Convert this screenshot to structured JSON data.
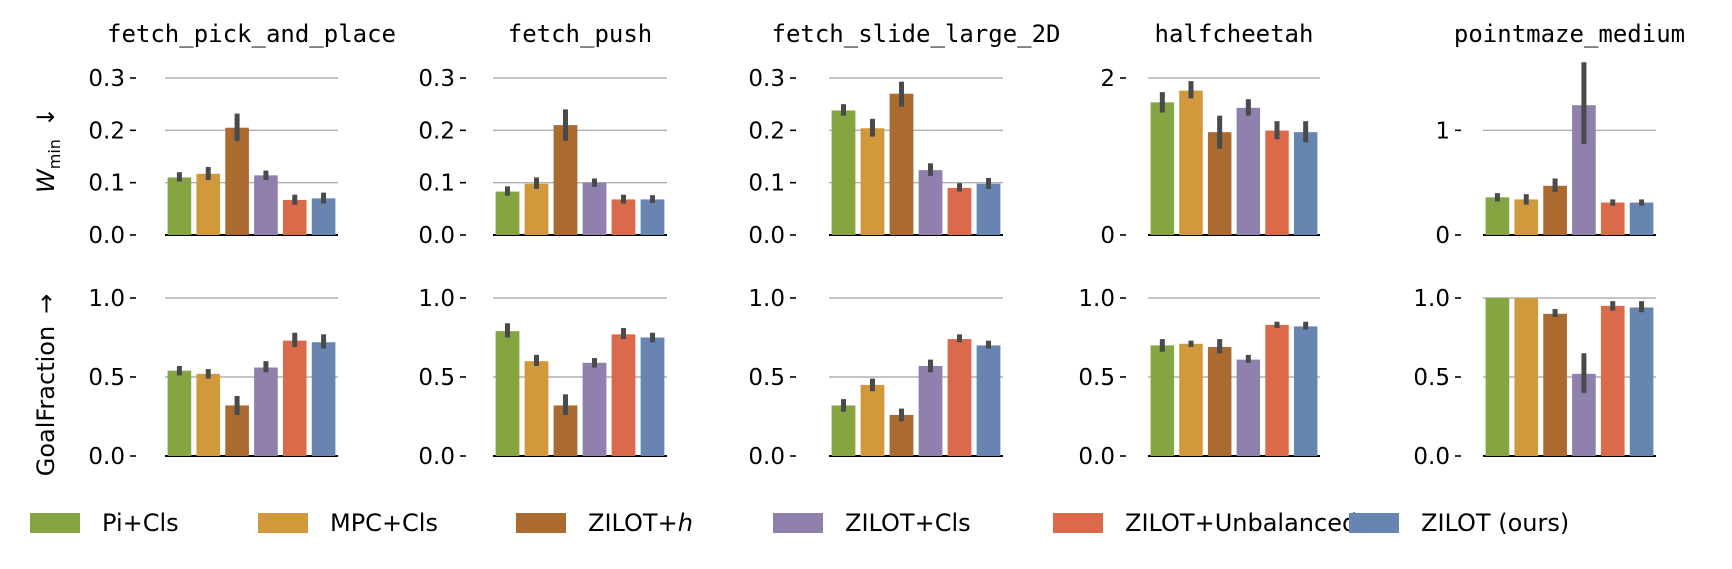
{
  "colors": {
    "Pi+Cls": "#84a541",
    "MPC+Cls": "#d1993b",
    "ZILOT+h": "#ab6a2f",
    "ZILOT+Cls": "#8f80ae",
    "ZILOT+Unbalanced": "#db6a4b",
    "ZILOT (ours)": "#6885b2",
    "errorbar": "#4a4a4a",
    "grid": "#b0b0b0"
  },
  "legend": {
    "items": [
      {
        "key": "Pi+Cls",
        "text": "Pi+Cls",
        "italic": ""
      },
      {
        "key": "MPC+Cls",
        "text": "MPC+Cls",
        "italic": ""
      },
      {
        "key": "ZILOT+h",
        "text": "ZILOT+",
        "italic": "h"
      },
      {
        "key": "ZILOT+Cls",
        "text": "ZILOT+Cls",
        "italic": ""
      },
      {
        "key": "ZILOT+Unbalanced",
        "text": "ZILOT+Unbalanced",
        "italic": ""
      },
      {
        "key": "ZILOT (ours)",
        "text": "ZILOT (ours)",
        "italic": ""
      }
    ]
  },
  "row_labels": {
    "row1": {
      "main": "W",
      "sub": "min",
      "arrow": "↓"
    },
    "row2": {
      "main": "GoalFraction",
      "arrow": "→"
    }
  },
  "chart_data": [
    {
      "type": "bar",
      "title": "fetch_pick_and_place",
      "ylabel": "W_min ↓",
      "categories": [
        "Pi+Cls",
        "MPC+Cls",
        "ZILOT+h",
        "ZILOT+Cls",
        "ZILOT+Unbalanced",
        "ZILOT (ours)"
      ],
      "values": [
        0.11,
        0.117,
        0.205,
        0.114,
        0.067,
        0.07
      ],
      "error_low": [
        0.102,
        0.105,
        0.18,
        0.105,
        0.058,
        0.06
      ],
      "error_high": [
        0.12,
        0.13,
        0.232,
        0.123,
        0.077,
        0.081
      ],
      "ylim": [
        0,
        0.3
      ],
      "yticks": [
        0.0,
        0.1,
        0.2,
        0.3
      ],
      "ytick_labels": [
        "0.0",
        "0.1",
        "0.2",
        "0.3"
      ]
    },
    {
      "type": "bar",
      "title": "fetch_push",
      "ylabel": "W_min ↓",
      "categories": [
        "Pi+Cls",
        "MPC+Cls",
        "ZILOT+h",
        "ZILOT+Cls",
        "ZILOT+Unbalanced",
        "ZILOT (ours)"
      ],
      "values": [
        0.083,
        0.098,
        0.21,
        0.1,
        0.068,
        0.068
      ],
      "error_low": [
        0.075,
        0.088,
        0.18,
        0.092,
        0.06,
        0.061
      ],
      "error_high": [
        0.093,
        0.11,
        0.24,
        0.108,
        0.077,
        0.076
      ],
      "ylim": [
        0,
        0.3
      ],
      "yticks": [
        0.0,
        0.1,
        0.2,
        0.3
      ],
      "ytick_labels": [
        "0.0",
        "0.1",
        "0.2",
        "0.3"
      ]
    },
    {
      "type": "bar",
      "title": "fetch_slide_large_2D",
      "ylabel": "W_min ↓",
      "categories": [
        "Pi+Cls",
        "MPC+Cls",
        "ZILOT+h",
        "ZILOT+Cls",
        "ZILOT+Unbalanced",
        "ZILOT (ours)"
      ],
      "values": [
        0.238,
        0.204,
        0.27,
        0.124,
        0.09,
        0.098
      ],
      "error_low": [
        0.228,
        0.188,
        0.245,
        0.113,
        0.083,
        0.088
      ],
      "error_high": [
        0.25,
        0.222,
        0.293,
        0.137,
        0.099,
        0.109
      ],
      "ylim": [
        0,
        0.3
      ],
      "yticks": [
        0.0,
        0.1,
        0.2,
        0.3
      ],
      "ytick_labels": [
        "0.0",
        "0.1",
        "0.2",
        "0.3"
      ]
    },
    {
      "type": "bar",
      "title": "halfcheetah",
      "ylabel": "W_min ↓",
      "categories": [
        "Pi+Cls",
        "MPC+Cls",
        "ZILOT+h",
        "ZILOT+Cls",
        "ZILOT+Unbalanced",
        "ZILOT (ours)"
      ],
      "values": [
        1.69,
        1.84,
        1.31,
        1.62,
        1.33,
        1.31
      ],
      "error_low": [
        1.56,
        1.74,
        1.1,
        1.52,
        1.22,
        1.18
      ],
      "error_high": [
        1.82,
        1.96,
        1.52,
        1.73,
        1.45,
        1.45
      ],
      "ylim": [
        0,
        2.0
      ],
      "yticks": [
        0,
        2
      ],
      "ytick_labels": [
        "0",
        "2"
      ]
    },
    {
      "type": "bar",
      "title": "pointmaze_medium",
      "ylabel": "W_min ↓",
      "categories": [
        "Pi+Cls",
        "MPC+Cls",
        "ZILOT+h",
        "ZILOT+Cls",
        "ZILOT+Unbalanced",
        "ZILOT (ours)"
      ],
      "values": [
        0.36,
        0.34,
        0.47,
        1.24,
        0.31,
        0.31
      ],
      "error_low": [
        0.32,
        0.29,
        0.41,
        0.87,
        0.28,
        0.28
      ],
      "error_high": [
        0.4,
        0.39,
        0.54,
        1.65,
        0.34,
        0.34
      ],
      "ylim": [
        0,
        1.5
      ],
      "yticks": [
        0,
        1
      ],
      "ytick_labels": [
        "0",
        "1"
      ]
    },
    {
      "type": "bar",
      "title": "",
      "ylabel": "GoalFraction →",
      "categories": [
        "Pi+Cls",
        "MPC+Cls",
        "ZILOT+h",
        "ZILOT+Cls",
        "ZILOT+Unbalanced",
        "ZILOT (ours)"
      ],
      "values": [
        0.54,
        0.52,
        0.32,
        0.56,
        0.73,
        0.72
      ],
      "error_low": [
        0.51,
        0.49,
        0.26,
        0.53,
        0.69,
        0.68
      ],
      "error_high": [
        0.57,
        0.55,
        0.38,
        0.6,
        0.78,
        0.77
      ],
      "ylim": [
        0,
        1.0
      ],
      "yticks": [
        0.0,
        0.5,
        1.0
      ],
      "ytick_labels": [
        "0.0",
        "0.5",
        "1.0"
      ]
    },
    {
      "type": "bar",
      "title": "",
      "ylabel": "GoalFraction →",
      "categories": [
        "Pi+Cls",
        "MPC+Cls",
        "ZILOT+h",
        "ZILOT+Cls",
        "ZILOT+Unbalanced",
        "ZILOT (ours)"
      ],
      "values": [
        0.79,
        0.6,
        0.32,
        0.59,
        0.77,
        0.75
      ],
      "error_low": [
        0.75,
        0.57,
        0.26,
        0.56,
        0.74,
        0.72
      ],
      "error_high": [
        0.84,
        0.64,
        0.39,
        0.62,
        0.81,
        0.78
      ],
      "ylim": [
        0,
        1.0
      ],
      "yticks": [
        0.0,
        0.5,
        1.0
      ],
      "ytick_labels": [
        "0.0",
        "0.5",
        "1.0"
      ]
    },
    {
      "type": "bar",
      "title": "",
      "ylabel": "GoalFraction →",
      "categories": [
        "Pi+Cls",
        "MPC+Cls",
        "ZILOT+h",
        "ZILOT+Cls",
        "ZILOT+Unbalanced",
        "ZILOT (ours)"
      ],
      "values": [
        0.32,
        0.45,
        0.26,
        0.57,
        0.74,
        0.7
      ],
      "error_low": [
        0.28,
        0.41,
        0.22,
        0.53,
        0.72,
        0.68
      ],
      "error_high": [
        0.36,
        0.49,
        0.3,
        0.61,
        0.77,
        0.73
      ],
      "ylim": [
        0,
        1.0
      ],
      "yticks": [
        0.0,
        0.5,
        1.0
      ],
      "ytick_labels": [
        "0.0",
        "0.5",
        "1.0"
      ]
    },
    {
      "type": "bar",
      "title": "",
      "ylabel": "GoalFraction →",
      "categories": [
        "Pi+Cls",
        "MPC+Cls",
        "ZILOT+h",
        "ZILOT+Cls",
        "ZILOT+Unbalanced",
        "ZILOT (ours)"
      ],
      "values": [
        0.7,
        0.71,
        0.69,
        0.61,
        0.83,
        0.82
      ],
      "error_low": [
        0.66,
        0.69,
        0.65,
        0.59,
        0.81,
        0.8
      ],
      "error_high": [
        0.74,
        0.73,
        0.74,
        0.64,
        0.85,
        0.85
      ],
      "ylim": [
        0,
        1.0
      ],
      "yticks": [
        0.0,
        0.5,
        1.0
      ],
      "ytick_labels": [
        "0.0",
        "0.5",
        "1.0"
      ]
    },
    {
      "type": "bar",
      "title": "",
      "ylabel": "GoalFraction →",
      "categories": [
        "Pi+Cls",
        "MPC+Cls",
        "ZILOT+h",
        "ZILOT+Cls",
        "ZILOT+Unbalanced",
        "ZILOT (ours)"
      ],
      "values": [
        1.0,
        1.0,
        0.9,
        0.52,
        0.95,
        0.94
      ],
      "error_low": [
        1.0,
        1.0,
        0.88,
        0.4,
        0.92,
        0.91
      ],
      "error_high": [
        1.0,
        1.0,
        0.93,
        0.65,
        0.98,
        0.98
      ],
      "ylim": [
        0,
        1.0
      ],
      "yticks": [
        0.0,
        0.5,
        1.0
      ],
      "ytick_labels": [
        "0.0",
        "0.5",
        "1.0"
      ]
    }
  ]
}
